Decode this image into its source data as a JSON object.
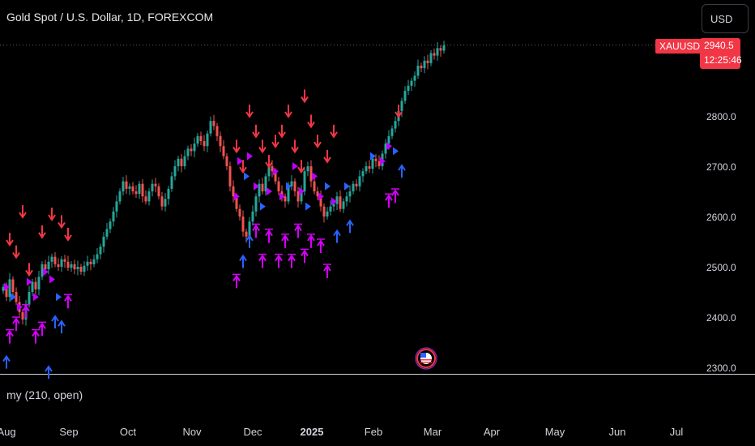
{
  "header": {
    "title": "Gold Spot / U.S. Dollar, 1D, FOREXCOM",
    "currency_button": "USD"
  },
  "price_scale": {
    "symbol_tag": "XAUUSD",
    "last_price": "2940.5",
    "countdown": "12:25:46"
  },
  "indicator": {
    "label": "my (210, open)"
  },
  "colors": {
    "up": "#26a69a",
    "down": "#ef5350",
    "sell_arrow": "#f23645",
    "buy_arrow_blue": "#2962ff",
    "buy_arrow_magenta": "#d500f9",
    "triangle_blue": "#2962ff",
    "triangle_magenta": "#c000ff",
    "background": "#000000"
  },
  "chart_data": {
    "type": "candlestick",
    "symbol": "XAUUSD",
    "interval": "1D",
    "y_ticks": [
      "2300.0",
      "2400.0",
      "2500.0",
      "2600.0",
      "2700.0",
      "2800.0"
    ],
    "x_ticks": [
      "Aug",
      "Sep",
      "Oct",
      "Nov",
      "Dec",
      "2025",
      "Feb",
      "Mar",
      "Apr",
      "May",
      "Jun",
      "Jul"
    ],
    "ylim": [
      2290,
      2960
    ],
    "closes": [
      2460,
      2440,
      2475,
      2450,
      2430,
      2410,
      2395,
      2425,
      2450,
      2470,
      2455,
      2480,
      2505,
      2495,
      2510,
      2520,
      2505,
      2500,
      2515,
      2510,
      2498,
      2505,
      2495,
      2500,
      2490,
      2502,
      2510,
      2505,
      2515,
      2525,
      2540,
      2560,
      2575,
      2590,
      2610,
      2630,
      2650,
      2670,
      2655,
      2660,
      2650,
      2645,
      2665,
      2640,
      2630,
      2650,
      2665,
      2660,
      2640,
      2620,
      2635,
      2655,
      2680,
      2700,
      2715,
      2700,
      2720,
      2735,
      2730,
      2745,
      2760,
      2750,
      2740,
      2765,
      2790,
      2780,
      2760,
      2740,
      2720,
      2700,
      2660,
      2640,
      2615,
      2600,
      2570,
      2560,
      2590,
      2610,
      2640,
      2665,
      2650,
      2680,
      2700,
      2690,
      2670,
      2650,
      2640,
      2630,
      2660,
      2670,
      2650,
      2630,
      2650,
      2690,
      2700,
      2670,
      2650,
      2640,
      2620,
      2600,
      2610,
      2620,
      2625,
      2640,
      2615,
      2630,
      2640,
      2650,
      2665,
      2660,
      2680,
      2690,
      2700,
      2695,
      2715,
      2710,
      2700,
      2725,
      2745,
      2760,
      2775,
      2790,
      2810,
      2830,
      2850,
      2860,
      2870,
      2880,
      2900,
      2895,
      2910,
      2905,
      2925,
      2920,
      2935,
      2930,
      2940.5
    ],
    "sell_signals": [
      {
        "bar": 2,
        "price": 2545
      },
      {
        "bar": 4,
        "price": 2520
      },
      {
        "bar": 6,
        "price": 2600
      },
      {
        "bar": 8,
        "price": 2485
      },
      {
        "bar": 12,
        "price": 2560
      },
      {
        "bar": 15,
        "price": 2595
      },
      {
        "bar": 18,
        "price": 2580
      },
      {
        "bar": 20,
        "price": 2555
      },
      {
        "bar": 72,
        "price": 2730
      },
      {
        "bar": 74,
        "price": 2690
      },
      {
        "bar": 76,
        "price": 2800
      },
      {
        "bar": 78,
        "price": 2760
      },
      {
        "bar": 80,
        "price": 2730
      },
      {
        "bar": 82,
        "price": 2700
      },
      {
        "bar": 84,
        "price": 2740
      },
      {
        "bar": 86,
        "price": 2760
      },
      {
        "bar": 88,
        "price": 2800
      },
      {
        "bar": 90,
        "price": 2730
      },
      {
        "bar": 92,
        "price": 2690
      },
      {
        "bar": 93,
        "price": 2830
      },
      {
        "bar": 95,
        "price": 2780
      },
      {
        "bar": 97,
        "price": 2740
      },
      {
        "bar": 100,
        "price": 2710
      },
      {
        "bar": 102,
        "price": 2760
      },
      {
        "bar": 122,
        "price": 2800
      }
    ],
    "buy_signals": [
      {
        "bar": 1,
        "price": 2320,
        "color": "blue"
      },
      {
        "bar": 2,
        "price": 2370,
        "color": "magenta"
      },
      {
        "bar": 4,
        "price": 2395,
        "color": "magenta"
      },
      {
        "bar": 7,
        "price": 2420,
        "color": "magenta"
      },
      {
        "bar": 10,
        "price": 2370,
        "color": "magenta"
      },
      {
        "bar": 12,
        "price": 2385,
        "color": "magenta"
      },
      {
        "bar": 14,
        "price": 2300,
        "color": "blue"
      },
      {
        "bar": 16,
        "price": 2400,
        "color": "blue"
      },
      {
        "bar": 18,
        "price": 2390,
        "color": "blue"
      },
      {
        "bar": 20,
        "price": 2440,
        "color": "magenta"
      },
      {
        "bar": 72,
        "price": 2480,
        "color": "magenta"
      },
      {
        "bar": 74,
        "price": 2520,
        "color": "blue"
      },
      {
        "bar": 76,
        "price": 2560,
        "color": "blue"
      },
      {
        "bar": 78,
        "price": 2580,
        "color": "magenta"
      },
      {
        "bar": 80,
        "price": 2520,
        "color": "magenta"
      },
      {
        "bar": 82,
        "price": 2570,
        "color": "magenta"
      },
      {
        "bar": 85,
        "price": 2520,
        "color": "magenta"
      },
      {
        "bar": 87,
        "price": 2560,
        "color": "magenta"
      },
      {
        "bar": 89,
        "price": 2520,
        "color": "magenta"
      },
      {
        "bar": 91,
        "price": 2580,
        "color": "magenta"
      },
      {
        "bar": 93,
        "price": 2530,
        "color": "magenta"
      },
      {
        "bar": 95,
        "price": 2560,
        "color": "magenta"
      },
      {
        "bar": 98,
        "price": 2550,
        "color": "magenta"
      },
      {
        "bar": 100,
        "price": 2500,
        "color": "magenta"
      },
      {
        "bar": 103,
        "price": 2570,
        "color": "blue"
      },
      {
        "bar": 107,
        "price": 2590,
        "color": "blue"
      },
      {
        "bar": 119,
        "price": 2640,
        "color": "magenta"
      },
      {
        "bar": 121,
        "price": 2650,
        "color": "magenta"
      },
      {
        "bar": 123,
        "price": 2700,
        "color": "blue"
      }
    ],
    "triangle_markers": [
      {
        "bar": 1,
        "price": 2460,
        "color": "magenta"
      },
      {
        "bar": 3,
        "price": 2440,
        "color": "blue"
      },
      {
        "bar": 5,
        "price": 2420,
        "color": "magenta"
      },
      {
        "bar": 8,
        "price": 2470,
        "color": "magenta"
      },
      {
        "bar": 10,
        "price": 2440,
        "color": "magenta"
      },
      {
        "bar": 13,
        "price": 2490,
        "color": "magenta"
      },
      {
        "bar": 15,
        "price": 2475,
        "color": "magenta"
      },
      {
        "bar": 17,
        "price": 2440,
        "color": "blue"
      },
      {
        "bar": 72,
        "price": 2640,
        "color": "magenta"
      },
      {
        "bar": 73,
        "price": 2710,
        "color": "magenta"
      },
      {
        "bar": 75,
        "price": 2680,
        "color": "blue"
      },
      {
        "bar": 76,
        "price": 2720,
        "color": "magenta"
      },
      {
        "bar": 78,
        "price": 2660,
        "color": "magenta"
      },
      {
        "bar": 80,
        "price": 2620,
        "color": "blue"
      },
      {
        "bar": 82,
        "price": 2650,
        "color": "magenta"
      },
      {
        "bar": 84,
        "price": 2690,
        "color": "magenta"
      },
      {
        "bar": 86,
        "price": 2640,
        "color": "magenta"
      },
      {
        "bar": 88,
        "price": 2660,
        "color": "blue"
      },
      {
        "bar": 90,
        "price": 2700,
        "color": "magenta"
      },
      {
        "bar": 92,
        "price": 2650,
        "color": "magenta"
      },
      {
        "bar": 94,
        "price": 2620,
        "color": "blue"
      },
      {
        "bar": 96,
        "price": 2680,
        "color": "magenta"
      },
      {
        "bar": 98,
        "price": 2640,
        "color": "magenta"
      },
      {
        "bar": 100,
        "price": 2660,
        "color": "blue"
      },
      {
        "bar": 102,
        "price": 2630,
        "color": "magenta"
      },
      {
        "bar": 106,
        "price": 2660,
        "color": "blue"
      },
      {
        "bar": 114,
        "price": 2720,
        "color": "blue"
      },
      {
        "bar": 117,
        "price": 2710,
        "color": "magenta"
      },
      {
        "bar": 119,
        "price": 2740,
        "color": "magenta"
      },
      {
        "bar": 121,
        "price": 2730,
        "color": "blue"
      }
    ]
  }
}
